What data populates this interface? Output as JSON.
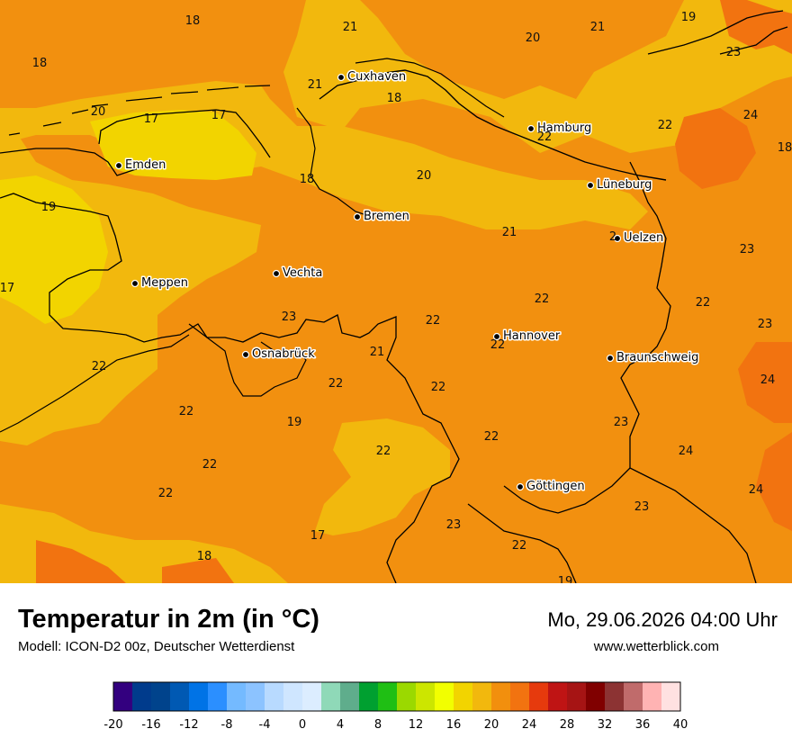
{
  "title": "Temperatur in 2m (in °C)",
  "subtitle": "Modell: ICON-D2 00z, Deutscher Wetterdienst",
  "datetime": "Mo, 29.06.2026 04:00 Uhr",
  "website": "www.wetterblick.com",
  "cities": [
    {
      "name": "Cuxhaven"
    },
    {
      "name": "Hamburg"
    },
    {
      "name": "Emden"
    },
    {
      "name": "Lüneburg"
    },
    {
      "name": "Bremen"
    },
    {
      "name": "Uelzen"
    },
    {
      "name": "Vechta"
    },
    {
      "name": "Meppen"
    },
    {
      "name": "Hannover"
    },
    {
      "name": "Osnabrück"
    },
    {
      "name": "Braunschweig"
    },
    {
      "name": "Göttingen"
    }
  ],
  "temperature_labels": [
    "18",
    "21",
    "20",
    "21",
    "19",
    "23",
    "18",
    "21",
    "18",
    "20",
    "17",
    "17",
    "22",
    "24",
    "22",
    "18",
    "20",
    "18",
    "19",
    "21",
    "2",
    "23",
    "17",
    "22",
    "22",
    "23",
    "23",
    "22",
    "22",
    "21",
    "22",
    "22",
    "24",
    "22",
    "22",
    "23",
    "19",
    "22",
    "24",
    "22",
    "22",
    "24",
    "22",
    "23",
    "17",
    "18",
    "23",
    "22",
    "19"
  ],
  "legend": {
    "ticks": [
      "-20",
      "-16",
      "-12",
      "-8",
      "-4",
      "0",
      "4",
      "8",
      "12",
      "16",
      "20",
      "24",
      "28",
      "32",
      "36",
      "40"
    ],
    "colors": [
      "#33007f",
      "#003b8c",
      "#00438c",
      "#0059b3",
      "#0073e6",
      "#2b8fff",
      "#74baff",
      "#8cc3ff",
      "#b8daff",
      "#cfe6ff",
      "#dcedff",
      "#8fd9b8",
      "#5fad8c",
      "#00a030",
      "#1fbf14",
      "#9bd900",
      "#cce600",
      "#f2ff00",
      "#f2d400",
      "#f2b80d",
      "#f28f0d",
      "#f27310",
      "#e63a0d",
      "#bf1414",
      "#a61414",
      "#800000",
      "#8c3333",
      "#c06b6b",
      "#ffb3b3",
      "#ffe1e1"
    ]
  }
}
